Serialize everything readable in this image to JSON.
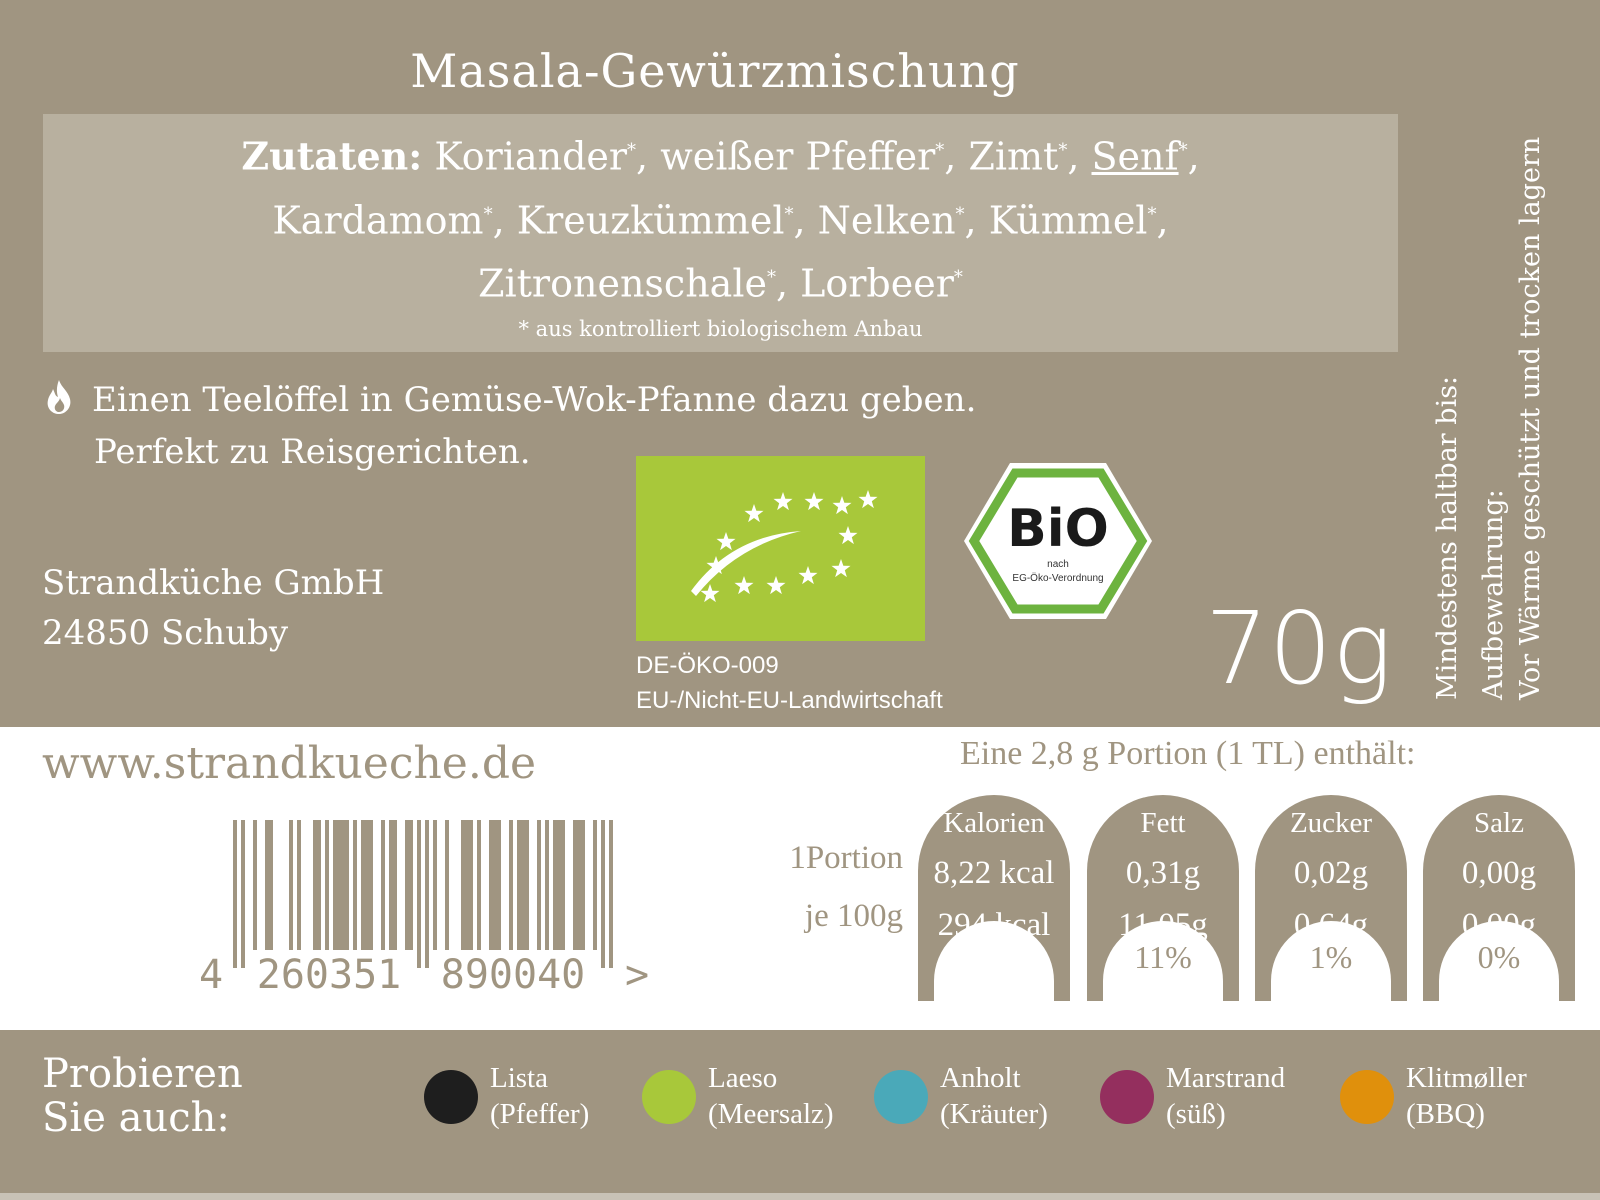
{
  "product": {
    "title": "Masala-Gewürzmischung",
    "weight": "70g"
  },
  "ingredients": {
    "label": "Zutaten:",
    "lines": [
      [
        {
          "t": "Koriander",
          "star": true
        },
        {
          "t": "weißer Pfeffer",
          "star": true
        },
        {
          "t": "Zimt",
          "star": true
        },
        {
          "t": "Senf",
          "star": true,
          "allergen": true
        }
      ],
      [
        {
          "t": "Kardamom",
          "star": true
        },
        {
          "t": "Kreuzkümmel",
          "star": true
        },
        {
          "t": "Nelken",
          "star": true
        },
        {
          "t": "Kümmel",
          "star": true
        }
      ],
      [
        {
          "t": "Zitronenschale",
          "star": true
        },
        {
          "t": "Lorbeer",
          "star": true
        }
      ]
    ],
    "footnote": "* aus kontrolliert biologischem Anbau"
  },
  "preparation": {
    "icon": "flame-icon",
    "line1": "Einen Teelöffel in Gemüse-Wok-Pfanne dazu geben.",
    "line2": "Perfekt zu Reisgerichten."
  },
  "company": {
    "name": "Strandküche GmbH",
    "city": "24850 Schuby",
    "website": "www.strandkueche.de"
  },
  "eu_organic": {
    "code": "DE-ÖKO-009",
    "origin": "EU-/Nicht-EU-Landwirtschaft"
  },
  "bio_seal": {
    "text": "BiO",
    "sub1": "nach",
    "sub2": "EG-Öko-Verordnung"
  },
  "side": {
    "best_before": "Mindestens haltbar bis:",
    "storage_label": "Aufbewahrung:",
    "storage_text": "Vor Wärme geschützt und trocken lagern"
  },
  "barcode": {
    "digits": "4260351890040",
    "first": "4",
    "left": "260351",
    "right": "890040",
    "arrow": ">"
  },
  "nutrition": {
    "header": "Eine 2,8 g Portion (1 TL) enthält:",
    "row_labels": [
      "1Portion",
      "je 100g"
    ],
    "columns": [
      {
        "name": "Kalorien",
        "portion": "8,22 kcal",
        "per100": "294 kcal",
        "pct": ""
      },
      {
        "name": "Fett",
        "portion": "0,31g",
        "per100": "11,05g",
        "pct": "11%"
      },
      {
        "name": "Zucker",
        "portion": "0,02g",
        "per100": "0,64g",
        "pct": "1%"
      },
      {
        "name": "Salz",
        "portion": "0,00g",
        "per100": "0,00g",
        "pct": "0%"
      }
    ]
  },
  "try_also": {
    "label1": "Probieren",
    "label2": "Sie auch:",
    "items": [
      {
        "name": "Lista",
        "sub": "(Pfeffer)",
        "color": "#1e1e1e"
      },
      {
        "name": "Laeso",
        "sub": "(Meersalz)",
        "color": "#a8c83a"
      },
      {
        "name": "Anholt",
        "sub": "(Kräuter)",
        "color": "#4aa9b9"
      },
      {
        "name": "Marstrand",
        "sub": "(süß)",
        "color": "#942f5e"
      },
      {
        "name": "Klitmøller",
        "sub": "(BBQ)",
        "color": "#e0900c"
      }
    ]
  },
  "colors": {
    "background": "#a09581",
    "ingredient_box": "#b8b09f",
    "eu_green": "#a8c83a"
  }
}
